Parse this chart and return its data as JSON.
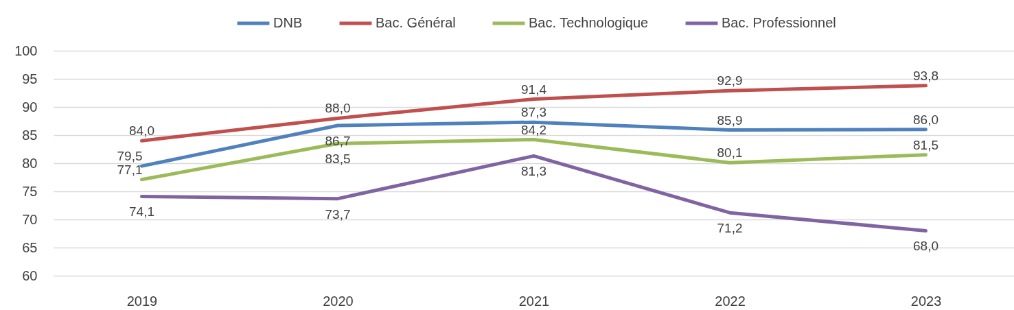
{
  "chart_data": {
    "type": "line",
    "categories": [
      "2019",
      "2020",
      "2021",
      "2022",
      "2023"
    ],
    "series": [
      {
        "name": "DNB",
        "color": "#4f81bd",
        "values": [
          79.5,
          86.7,
          87.3,
          85.9,
          86.0
        ],
        "value_labels": [
          "79,5",
          "86,7",
          "87,3",
          "85,9",
          "86,0"
        ]
      },
      {
        "name": "Bac. Général",
        "color": "#c0504d",
        "values": [
          84.0,
          88.0,
          91.4,
          92.9,
          93.8
        ],
        "value_labels": [
          "84,0",
          "88,0",
          "91,4",
          "92,9",
          "93,8"
        ]
      },
      {
        "name": "Bac. Technologique",
        "color": "#9bbb59",
        "values": [
          77.1,
          83.5,
          84.2,
          80.1,
          81.5
        ],
        "value_labels": [
          "77,1",
          "83,5",
          "84,2",
          "80,1",
          "81,5"
        ]
      },
      {
        "name": "Bac. Professionnel",
        "color": "#8064a2",
        "values": [
          74.1,
          73.7,
          81.3,
          71.2,
          68.0
        ],
        "value_labels": [
          "74,1",
          "73,7",
          "81,3",
          "71,2",
          "68,0"
        ]
      }
    ],
    "ylim": [
      60,
      100
    ],
    "yticks": [
      60,
      65,
      70,
      75,
      80,
      85,
      90,
      95,
      100
    ],
    "grid": "y",
    "legend": "top",
    "line_style": "solid"
  }
}
